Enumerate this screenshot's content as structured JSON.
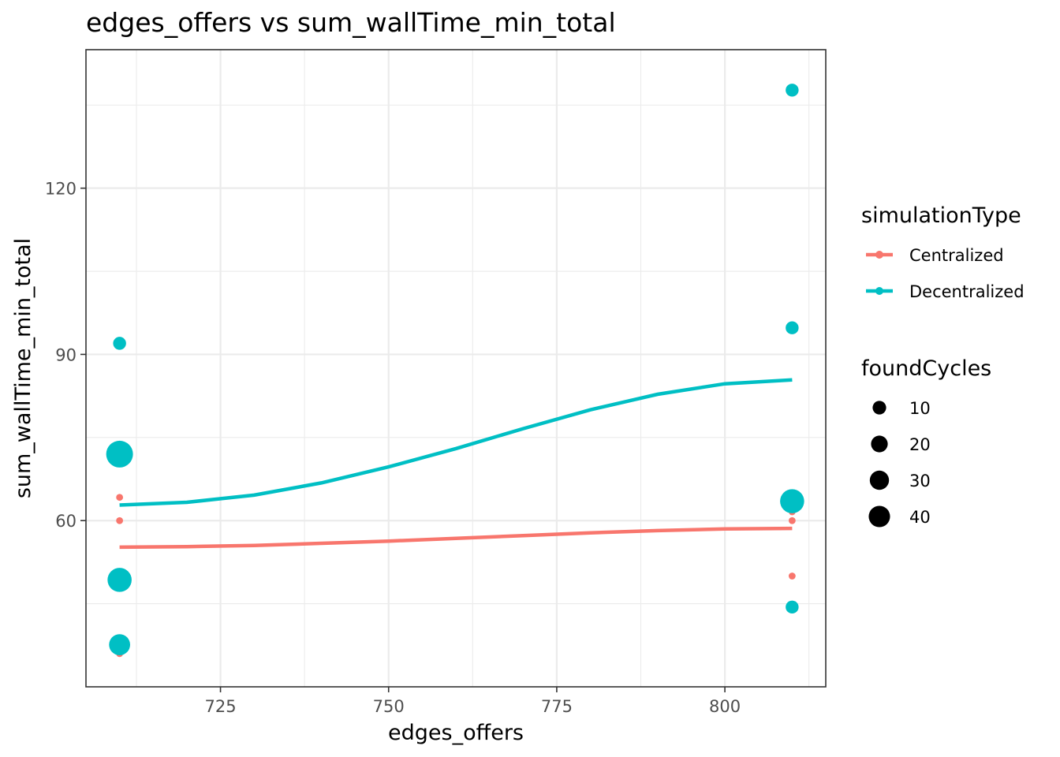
{
  "chart_data": {
    "type": "scatter",
    "title": "edges_offers  vs  sum_wallTime_min_total",
    "xlabel": "edges_offers",
    "ylabel": "sum_wallTime_min_total",
    "xlim": [
      705,
      815
    ],
    "ylim": [
      30,
      145
    ],
    "x_ticks": [
      725,
      750,
      775,
      800
    ],
    "y_ticks": [
      60,
      90,
      120
    ],
    "grid": true,
    "legend_placement": "right",
    "colour_legend": {
      "title": "simulationType",
      "items": [
        {
          "label": "Centralized",
          "color": "#F8766D"
        },
        {
          "label": "Decentralized",
          "color": "#00BFC4"
        }
      ]
    },
    "size_legend": {
      "title": "foundCycles",
      "items": [
        {
          "label": "10",
          "value": 10
        },
        {
          "label": "20",
          "value": 20
        },
        {
          "label": "30",
          "value": 30
        },
        {
          "label": "40",
          "value": 40
        }
      ]
    },
    "series": [
      {
        "name": "Centralized",
        "color": "#F8766D",
        "points": [
          {
            "x": 710,
            "y": 64.2,
            "size": 1
          },
          {
            "x": 710,
            "y": 60.0,
            "size": 1
          },
          {
            "x": 710,
            "y": 36.0,
            "size": 1
          },
          {
            "x": 810,
            "y": 61.6,
            "size": 1
          },
          {
            "x": 810,
            "y": 60.0,
            "size": 1
          },
          {
            "x": 810,
            "y": 50.0,
            "size": 1
          }
        ],
        "smooth": [
          {
            "x": 710,
            "y": 55.2
          },
          {
            "x": 720,
            "y": 55.3
          },
          {
            "x": 730,
            "y": 55.5
          },
          {
            "x": 740,
            "y": 55.9
          },
          {
            "x": 750,
            "y": 56.3
          },
          {
            "x": 760,
            "y": 56.8
          },
          {
            "x": 770,
            "y": 57.3
          },
          {
            "x": 780,
            "y": 57.8
          },
          {
            "x": 790,
            "y": 58.2
          },
          {
            "x": 800,
            "y": 58.5
          },
          {
            "x": 810,
            "y": 58.6
          }
        ]
      },
      {
        "name": "Decentralized",
        "color": "#00BFC4",
        "points": [
          {
            "x": 710,
            "y": 92.0,
            "size": 8
          },
          {
            "x": 710,
            "y": 72.0,
            "size": 40
          },
          {
            "x": 710,
            "y": 49.3,
            "size": 32
          },
          {
            "x": 710,
            "y": 37.6,
            "size": 24
          },
          {
            "x": 810,
            "y": 137.7,
            "size": 8
          },
          {
            "x": 810,
            "y": 94.8,
            "size": 8
          },
          {
            "x": 810,
            "y": 63.5,
            "size": 32
          },
          {
            "x": 810,
            "y": 44.4,
            "size": 8
          }
        ],
        "smooth": [
          {
            "x": 710,
            "y": 62.8
          },
          {
            "x": 720,
            "y": 63.3
          },
          {
            "x": 730,
            "y": 64.6
          },
          {
            "x": 740,
            "y": 66.8
          },
          {
            "x": 750,
            "y": 69.7
          },
          {
            "x": 760,
            "y": 73.0
          },
          {
            "x": 770,
            "y": 76.6
          },
          {
            "x": 780,
            "y": 80.0
          },
          {
            "x": 790,
            "y": 82.8
          },
          {
            "x": 800,
            "y": 84.7
          },
          {
            "x": 810,
            "y": 85.4
          }
        ]
      }
    ]
  }
}
